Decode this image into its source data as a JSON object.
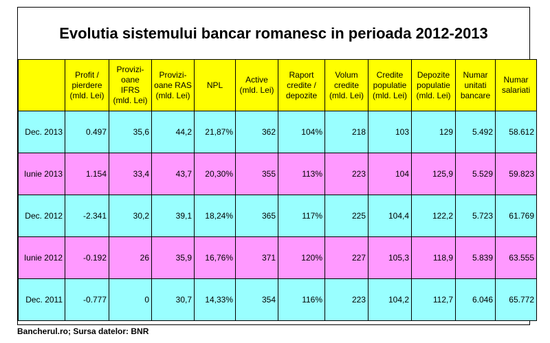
{
  "title": "Evolutia sistemului bancar romanesc in perioada 2012-2013",
  "headers": [
    "",
    "Profit / pierdere (mld. Lei)",
    "Provizi-oane IFRS (mld. Lei)",
    "Provizi-oane RAS (mld. Lei)",
    "NPL",
    "Active (mld. Lei)",
    "Raport credite / depozite",
    "Volum credite (mld. Lei)",
    "Credite populatie (mld. Lei)",
    "Depozite populatie (mld. Lei)",
    "Numar unitati bancare",
    "Numar salariati"
  ],
  "rows": [
    {
      "color": "#99ffff",
      "cells": [
        "Dec. 2013",
        "0.497",
        "35,6",
        "44,2",
        "21,87%",
        "362",
        "104%",
        "218",
        "103",
        "129",
        "5.492",
        "58.612"
      ]
    },
    {
      "color": "#ff99ff",
      "cells": [
        "Iunie 2013",
        "1.154",
        "33,4",
        "43,7",
        "20,30%",
        "355",
        "113%",
        "223",
        "104",
        "125,9",
        "5.529",
        "59.823"
      ]
    },
    {
      "color": "#99ffff",
      "cells": [
        "Dec. 2012",
        "-2.341",
        "30,2",
        "39,1",
        "18,24%",
        "365",
        "117%",
        "225",
        "104,4",
        "122,2",
        "5.723",
        "61.769"
      ]
    },
    {
      "color": "#ff99ff",
      "cells": [
        "Iunie 2012",
        "-0.192",
        "26",
        "35,9",
        "16,76%",
        "371",
        "120%",
        "227",
        "105,3",
        "118,9",
        "5.839",
        "63.555"
      ]
    },
    {
      "color": "#99ffff",
      "cells": [
        "Dec. 2011",
        "-0.777",
        "0",
        "30,7",
        "14,33%",
        "354",
        "116%",
        "223",
        "104,2",
        "112,7",
        "6.046",
        "65.772"
      ]
    }
  ],
  "source": "Bancherul.ro; Sursa datelor: BNR",
  "colors": {
    "header": "#ffff00",
    "row_a": "#99ffff",
    "row_b": "#ff99ff"
  }
}
